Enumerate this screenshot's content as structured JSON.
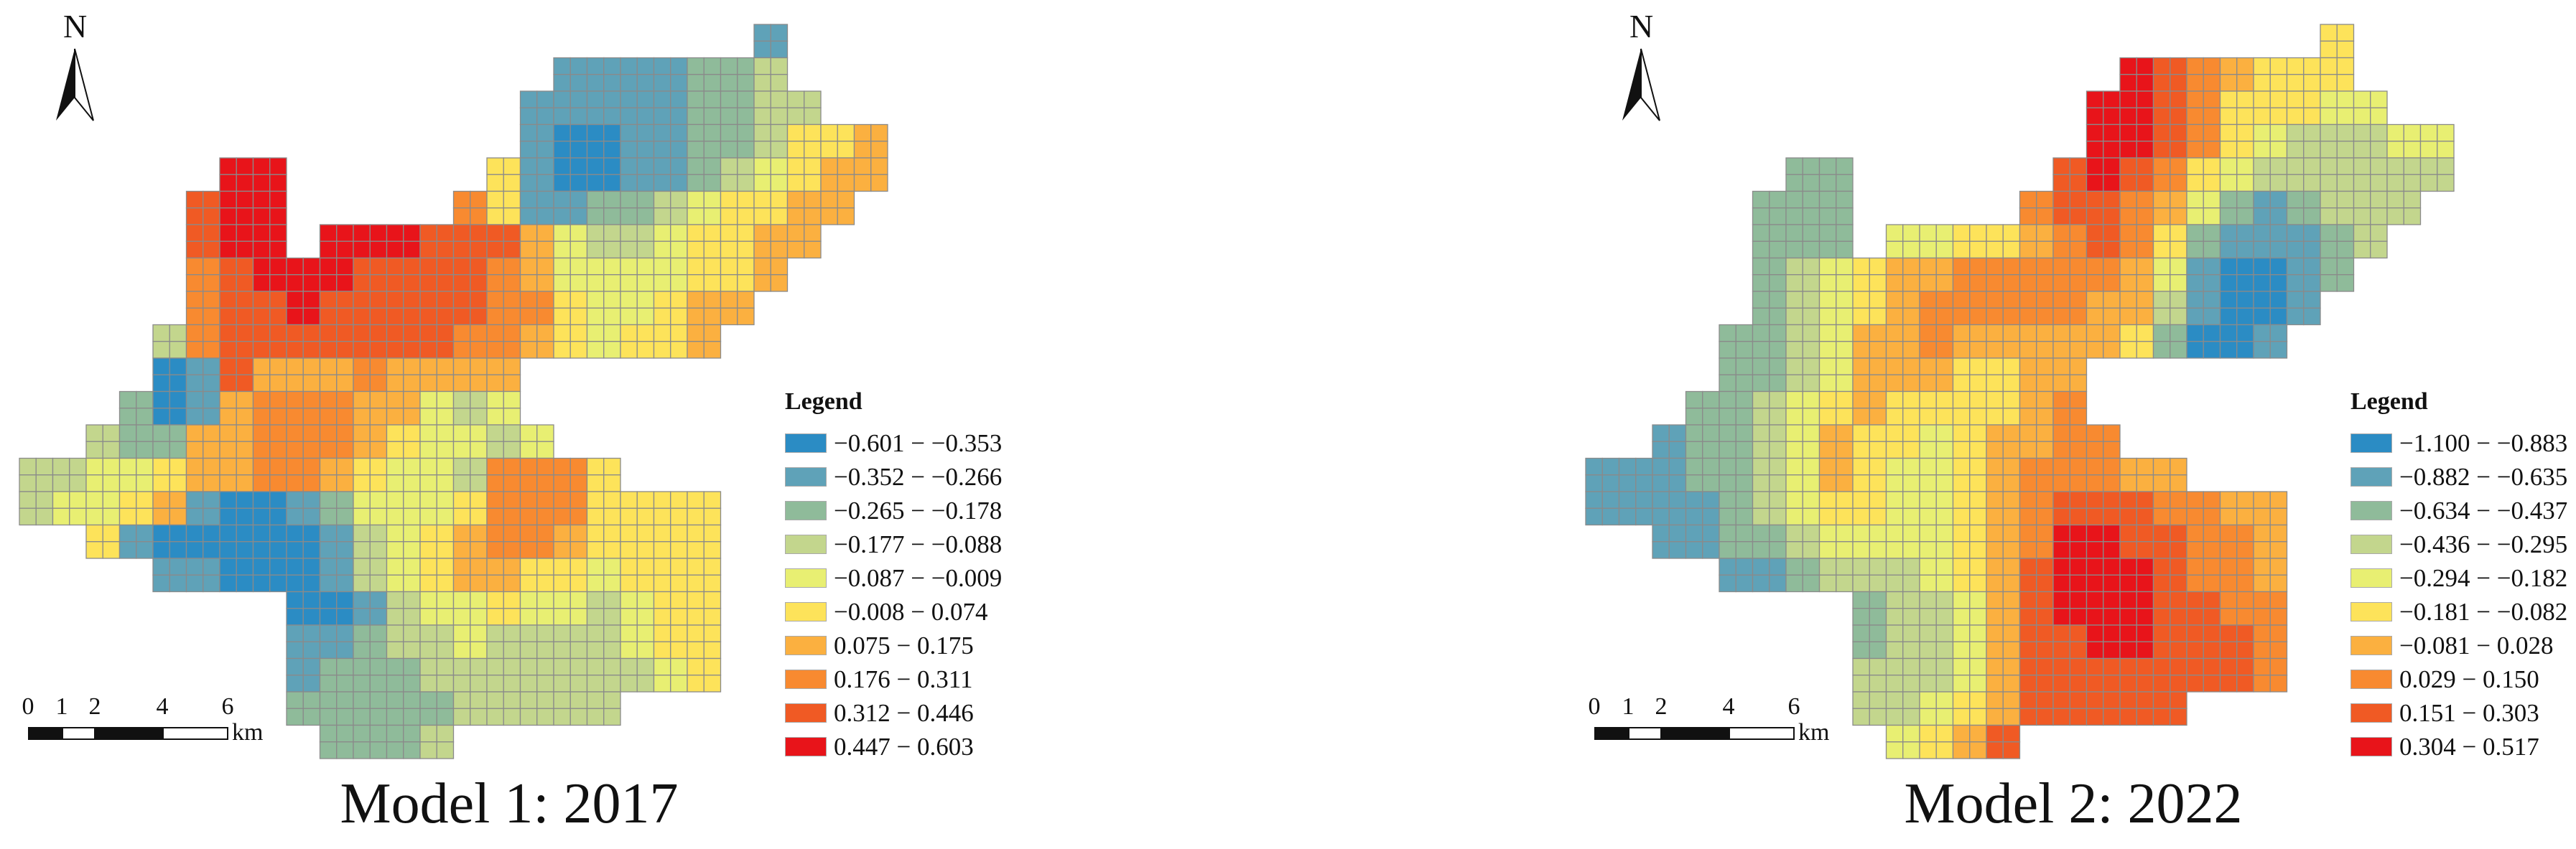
{
  "palette": [
    "#2b8cc4",
    "#5fa2b8",
    "#8fbb9a",
    "#c3d68d",
    "#e8ef72",
    "#fde35a",
    "#fbb040",
    "#f88a30",
    "#f05a24",
    "#e8141a"
  ],
  "north_label": "N",
  "scale_bar": {
    "ticks": [
      "0",
      "1",
      "2",
      "4",
      "6"
    ],
    "unit": "km"
  },
  "maps": [
    {
      "caption": "Model 1: 2017",
      "legend": {
        "title": "Legend",
        "items": [
          {
            "label": "−0.601 − −0.353",
            "class": 0
          },
          {
            "label": "−0.352 − −0.266",
            "class": 1
          },
          {
            "label": "−0.265 − −0.178",
            "class": 2
          },
          {
            "label": "−0.177 − −0.088",
            "class": 3
          },
          {
            "label": "−0.087 − −0.009",
            "class": 4
          },
          {
            "label": "−0.008 − 0.074",
            "class": 5
          },
          {
            "label": "0.075 − 0.175",
            "class": 6
          },
          {
            "label": "0.176 − 0.311",
            "class": 7
          },
          {
            "label": "0.312 − 0.446",
            "class": 8
          },
          {
            "label": "0.447 − 0.603",
            "class": 9
          }
        ]
      },
      "grid": [
        "......................1...",
        "................1111223...",
        "...............111112233..",
        "...............10011223556",
        "......99......510011234566",
        ".....899.....751122345566.",
        ".....899.999888643345566..",
        ".....789998888764444556...",
        ".....78898888877544566....",
        "....37888888877654556.....",
        "....01866676666...........",
        "...201677766434...........",
        "..32266777654434..........",
        "334456677654437775........",
        "344561001244457775555.....",
        "..5100000134567765555.....",
        "....11000134566554555.....",
        "........0013445443455.....",
        "........1123343333455.....",
        "........1222333333345.....",
        "........2222233333........",
        ".........2223............."
      ]
    },
    {
      "caption": "Model 2: 2022",
      "legend": {
        "title": "Legend",
        "items": [
          {
            "label": "−1.100 − −0.883",
            "class": 0
          },
          {
            "label": "−0.882 − −0.635",
            "class": 1
          },
          {
            "label": "−0.634 − −0.437",
            "class": 2
          },
          {
            "label": "−0.436 − −0.295",
            "class": 3
          },
          {
            "label": "−0.294 − −0.182",
            "class": 4
          },
          {
            "label": "−0.181 − −0.082",
            "class": 5
          },
          {
            "label": "−0.081 − 0.028",
            "class": 6
          },
          {
            "label": "0.029 − 0.150",
            "class": 7
          },
          {
            "label": "0.151 − 0.303",
            "class": 8
          },
          {
            "label": "0.304 − 0.517",
            "class": 9
          }
        ]
      },
      "grid": [
        "......................5...",
        "................9876555...",
        "...............998755544..",
        "...............99875433344",
        "......22......898754333333",
        ".....222.....788764212333.",
        ".....222.445567875211123..",
        ".....234566777776410012...",
        ".....23456777776631001....",
        "....22346676666652001.....",
        "....22346665566...........",
        "...223456555567...........",
        "..12234655456677..........",
        "111223465445677766........",
        "111123455445678887766.....",
        "..1122344445679988776.....",
        "....11233345689998776.....",
        "........2334689998877.....",
        "........2334688998887.....",
        "........3334688888887.....",
        "........3345688888........",
        ".........4568............."
      ]
    }
  ]
}
